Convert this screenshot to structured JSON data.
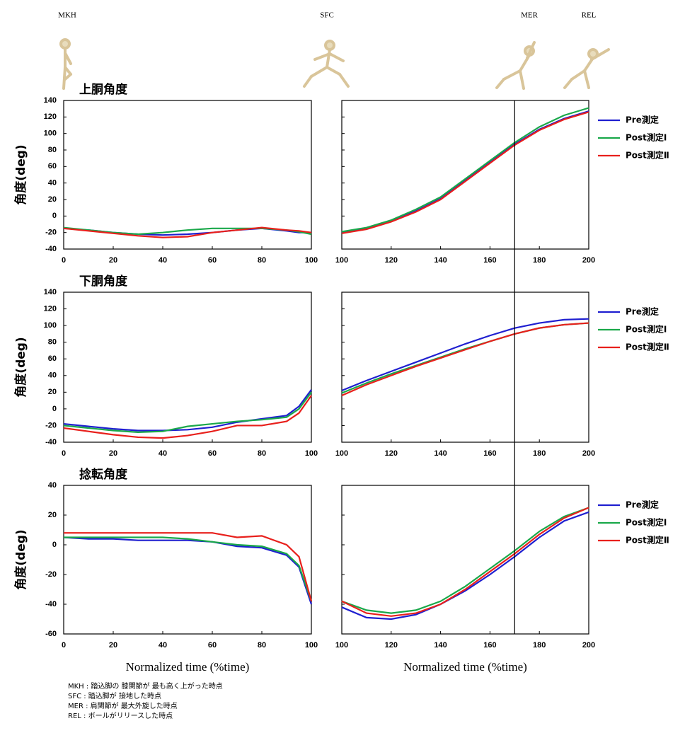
{
  "phases": [
    "MKH",
    "SFC",
    "MER",
    "REL"
  ],
  "notes": [
    "MKH : 踏込脚の 膝関節が 最も高く上がった時点",
    "SFC : 踏込脚が 接地した時点",
    "MER : 肩関節が 最大外旋した時点",
    "REL : ボールがリリースした時点"
  ],
  "chart_data": [
    {
      "type": "line",
      "title": "上胴角度",
      "ylabel": "角度(deg)",
      "x": [
        0,
        10,
        20,
        30,
        40,
        50,
        60,
        70,
        80,
        90,
        95,
        100
      ],
      "series": [
        {
          "color": "#1f1fd0",
          "values": [
            -15,
            -17,
            -20,
            -22,
            -23,
            -22,
            -20,
            -17,
            -15,
            -18,
            -20,
            -20
          ]
        },
        {
          "color": "#1aa84a",
          "values": [
            -14,
            -17,
            -20,
            -22,
            -20,
            -17,
            -15,
            -15,
            -15,
            -17,
            -19,
            -22
          ]
        },
        {
          "color": "#e8201c",
          "values": [
            -15,
            -18,
            -21,
            -24,
            -26,
            -25,
            -20,
            -17,
            -14,
            -17,
            -18,
            -20
          ]
        }
      ],
      "xlim": [
        0,
        100
      ],
      "xticks": [
        0,
        20,
        40,
        60,
        80,
        100
      ],
      "ylim": [
        -40,
        140
      ],
      "yticks": [
        -40,
        -20,
        0,
        20,
        40,
        60,
        80,
        100,
        120,
        140
      ]
    },
    {
      "type": "line",
      "vline": 170,
      "x": [
        100,
        110,
        120,
        130,
        140,
        150,
        160,
        170,
        180,
        190,
        200
      ],
      "series": [
        {
          "name": "Pre測定",
          "color": "#1f1fd0",
          "values": [
            -20,
            -15,
            -6,
            6,
            21,
            43,
            65,
            87,
            105,
            118,
            127
          ]
        },
        {
          "name": "Post測定Ⅰ",
          "color": "#1aa84a",
          "values": [
            -19,
            -14,
            -5,
            8,
            23,
            45,
            67,
            89,
            108,
            122,
            131
          ]
        },
        {
          "name": "Post測定Ⅱ",
          "color": "#e8201c",
          "values": [
            -21,
            -16,
            -7,
            5,
            20,
            42,
            64,
            86,
            104,
            117,
            126
          ]
        }
      ],
      "xlim": [
        100,
        200
      ],
      "xticks": [
        100,
        120,
        140,
        160,
        180,
        200
      ],
      "ylim": [
        -40,
        140
      ],
      "yticks": [
        -40,
        -20,
        0,
        20,
        40,
        60,
        80,
        100,
        120,
        140
      ]
    },
    {
      "type": "line",
      "title": "下胴角度",
      "ylabel": "角度(deg)",
      "x": [
        0,
        10,
        20,
        30,
        40,
        50,
        60,
        70,
        80,
        90,
        95,
        100
      ],
      "series": [
        {
          "color": "#1f1fd0",
          "values": [
            -18,
            -21,
            -24,
            -26,
            -26,
            -25,
            -22,
            -16,
            -12,
            -8,
            3,
            23
          ]
        },
        {
          "color": "#1aa84a",
          "values": [
            -20,
            -23,
            -26,
            -28,
            -27,
            -21,
            -18,
            -15,
            -13,
            -10,
            0,
            20
          ]
        },
        {
          "color": "#e8201c",
          "values": [
            -23,
            -27,
            -31,
            -34,
            -35,
            -32,
            -27,
            -20,
            -20,
            -15,
            -5,
            16
          ]
        }
      ],
      "xlim": [
        0,
        100
      ],
      "xticks": [
        0,
        20,
        40,
        60,
        80,
        100
      ],
      "ylim": [
        -40,
        140
      ],
      "yticks": [
        -40,
        -20,
        0,
        20,
        40,
        60,
        80,
        100,
        120,
        140
      ]
    },
    {
      "type": "line",
      "x": [
        100,
        110,
        120,
        130,
        140,
        150,
        160,
        170,
        180,
        190,
        200
      ],
      "series": [
        {
          "name": "Pre測定",
          "color": "#1f1fd0",
          "values": [
            22,
            34,
            45,
            56,
            67,
            78,
            88,
            97,
            103,
            107,
            108
          ]
        },
        {
          "name": "Post測定Ⅰ",
          "color": "#1aa84a",
          "values": [
            19,
            31,
            42,
            52,
            62,
            72,
            81,
            90,
            97,
            101,
            103
          ]
        },
        {
          "name": "Post測定Ⅱ",
          "color": "#e8201c",
          "values": [
            16,
            29,
            40,
            51,
            61,
            71,
            81,
            90,
            97,
            101,
            103
          ]
        }
      ],
      "xlim": [
        100,
        200
      ],
      "xticks": [
        100,
        120,
        140,
        160,
        180,
        200
      ],
      "ylim": [
        -40,
        140
      ],
      "yticks": [
        -40,
        -20,
        0,
        20,
        40,
        60,
        80,
        100,
        120,
        140
      ]
    },
    {
      "type": "line",
      "title": "捻転角度",
      "ylabel": "角度(deg)",
      "xlabel": "Normalized time (%time)",
      "x": [
        0,
        10,
        20,
        30,
        40,
        50,
        60,
        70,
        80,
        90,
        95,
        100
      ],
      "series": [
        {
          "color": "#1f1fd0",
          "values": [
            5,
            4,
            4,
            3,
            3,
            3,
            2,
            -1,
            -2,
            -7,
            -15,
            -40
          ]
        },
        {
          "color": "#1aa84a",
          "values": [
            5,
            5,
            5,
            5,
            5,
            4,
            2,
            0,
            -1,
            -6,
            -14,
            -38
          ]
        },
        {
          "color": "#e8201c",
          "values": [
            8,
            8,
            8,
            8,
            8,
            8,
            8,
            5,
            6,
            0,
            -8,
            -38
          ]
        }
      ],
      "xlim": [
        0,
        100
      ],
      "xticks": [
        0,
        20,
        40,
        60,
        80,
        100
      ],
      "ylim": [
        -60,
        40
      ],
      "yticks": [
        -60,
        -40,
        -20,
        0,
        20,
        40
      ]
    },
    {
      "type": "line",
      "xlabel": "Normalized time (%time)",
      "x": [
        100,
        110,
        120,
        130,
        140,
        150,
        160,
        170,
        180,
        190,
        200
      ],
      "series": [
        {
          "name": "Pre測定",
          "color": "#1f1fd0",
          "values": [
            -42,
            -49,
            -50,
            -47,
            -40,
            -31,
            -20,
            -8,
            5,
            16,
            22
          ]
        },
        {
          "name": "Post測定Ⅰ",
          "color": "#1aa84a",
          "values": [
            -38,
            -44,
            -46,
            -44,
            -38,
            -28,
            -16,
            -4,
            9,
            19,
            25
          ]
        },
        {
          "name": "Post測定Ⅱ",
          "color": "#e8201c",
          "values": [
            -38,
            -46,
            -48,
            -46,
            -40,
            -30,
            -18,
            -6,
            7,
            18,
            25
          ]
        }
      ],
      "xlim": [
        100,
        200
      ],
      "xticks": [
        100,
        120,
        140,
        160,
        180,
        200
      ],
      "ylim": [
        -60,
        40
      ],
      "yticks": [
        -60,
        -40,
        -20,
        0,
        20,
        40
      ]
    }
  ]
}
